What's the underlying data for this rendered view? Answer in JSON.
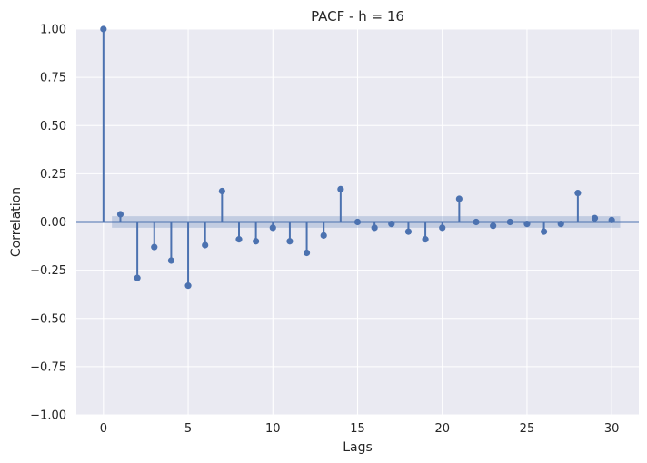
{
  "chart_data": {
    "type": "scatter",
    "subtype": "stem",
    "title": "PACF - h = 16",
    "xlabel": "Lags",
    "ylabel": "Correlation",
    "xlim": [
      -1.6,
      31.6
    ],
    "ylim": [
      -1.0,
      1.0
    ],
    "x_ticks": [
      "0",
      "5",
      "10",
      "15",
      "20",
      "25",
      "30"
    ],
    "y_ticks": [
      "−1.00",
      "−0.75",
      "−0.50",
      "−0.25",
      "0.00",
      "0.25",
      "0.50",
      "0.75",
      "1.00"
    ],
    "grid": true,
    "legend": "none",
    "confidence_band": {
      "x_range": [
        0.5,
        30.5
      ],
      "lower": -0.03,
      "upper": 0.03
    },
    "series": [
      {
        "x": [
          0,
          1,
          2,
          3,
          4,
          5,
          6,
          7,
          8,
          9,
          10,
          11,
          12,
          13,
          14,
          15,
          16,
          17,
          18,
          19,
          20,
          21,
          22,
          23,
          24,
          25,
          26,
          27,
          28,
          29,
          30
        ],
        "values": [
          1.0,
          0.04,
          -0.29,
          -0.13,
          -0.2,
          -0.33,
          -0.12,
          0.16,
          -0.09,
          -0.1,
          -0.03,
          -0.1,
          -0.16,
          -0.07,
          0.17,
          0.0,
          -0.03,
          -0.01,
          -0.05,
          -0.09,
          -0.03,
          0.12,
          0.0,
          -0.02,
          0.0,
          -0.01,
          -0.05,
          -0.01,
          0.15,
          0.02,
          0.01
        ]
      }
    ],
    "colors": {
      "background": "#eaeaf2",
      "grid": "#ffffff",
      "series": "#4c72b0",
      "band": "#4c72b0"
    }
  }
}
